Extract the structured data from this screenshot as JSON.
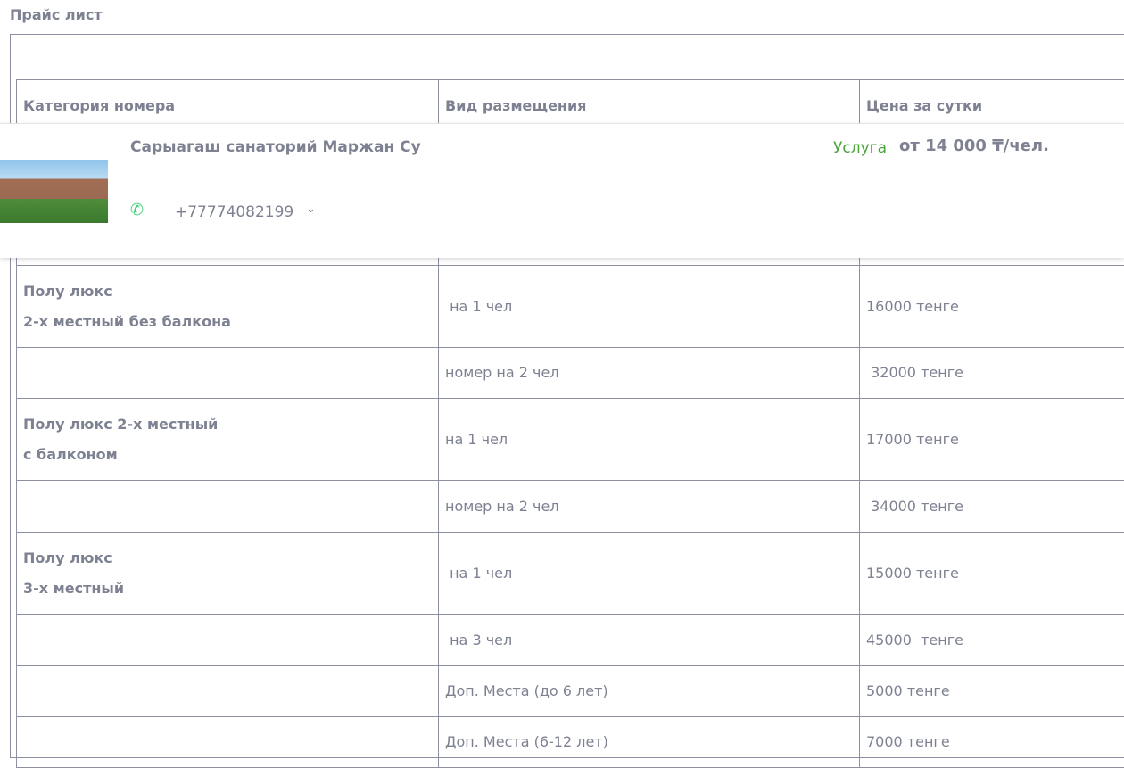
{
  "title": "Прайс лист",
  "table": {
    "headers": [
      "Категория номера",
      "Вид размещения",
      "Цена за сутки"
    ],
    "rows": [
      {
        "cat": [
          "Полу люкс",
          "2-х местный без балкона"
        ],
        "type": " на 1 чел",
        "price": "16000 тенге"
      },
      {
        "cat": [],
        "type": "номер на 2 чел",
        "price": " 32000 тенге"
      },
      {
        "cat": [
          "Полу люкс 2-х местный",
          "с балконом"
        ],
        "type": "на 1 чел",
        "price": "17000 тенге"
      },
      {
        "cat": [],
        "type": "номер на 2 чел",
        "price": " 34000 тенге"
      },
      {
        "cat": [
          "Полу люкс",
          "3-х местный"
        ],
        "type": " на 1 чел",
        "price": "15000 тенге"
      },
      {
        "cat": [],
        "type": " на 3 чел",
        "price": "45000  тенге"
      },
      {
        "cat": [],
        "type": "Доп. Места (до 6 лет)",
        "price": "5000 тенге"
      },
      {
        "cat": [],
        "type": "Доп. Места (6-12 лет)",
        "price": "7000 тенге"
      }
    ]
  },
  "card": {
    "name": "Сарыагаш санаторий Маржан Су",
    "service": "Услуга",
    "price": "от 14 000 ₸/чел.",
    "phone": "+77774082199",
    "phone_icon": "phone-icon",
    "chevron_icon": "chevron-down-icon",
    "service_color": "#4aa53a"
  }
}
